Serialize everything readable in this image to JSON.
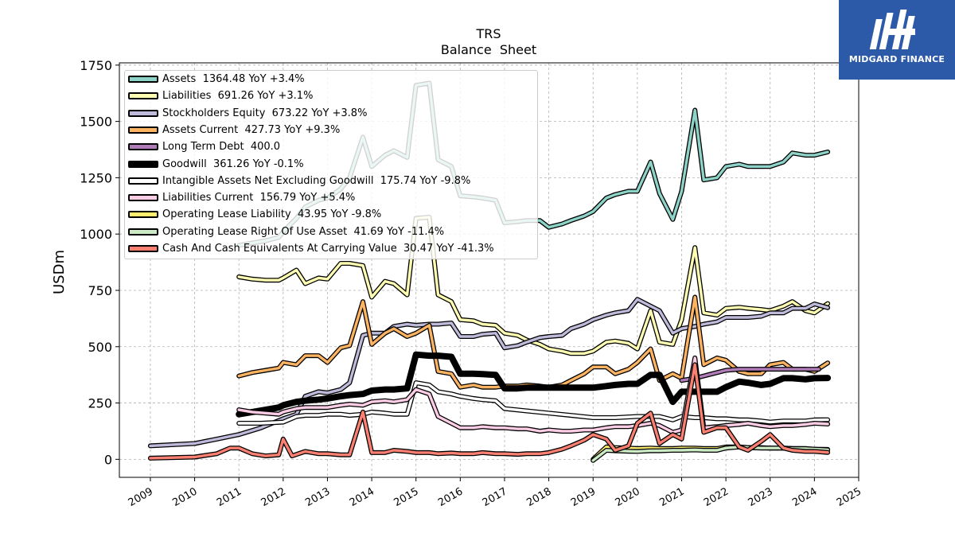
{
  "brand": {
    "name": "MIDGARD FINANCE",
    "color": "#2d5aa8"
  },
  "chart_data": {
    "type": "line",
    "title": "TRS",
    "subtitle": "Balance  Sheet",
    "ylabel": "USDm",
    "xlabel": "",
    "xlim": [
      2008.3,
      2025.0
    ],
    "ylim": [
      -80,
      1760
    ],
    "yticks": [
      0,
      250,
      500,
      750,
      1000,
      1250,
      1500,
      1750
    ],
    "yticklabels": [
      "0",
      "250",
      "500",
      "750",
      "1000",
      "1250",
      "1500",
      "1750"
    ],
    "xticks": [
      2009,
      2010,
      2011,
      2012,
      2013,
      2014,
      2015,
      2016,
      2017,
      2018,
      2019,
      2020,
      2021,
      2022,
      2023,
      2024,
      2025
    ],
    "xticklabels": [
      "2009",
      "2010",
      "2011",
      "2012",
      "2013",
      "2014",
      "2015",
      "2016",
      "2017",
      "2018",
      "2019",
      "2020",
      "2021",
      "2022",
      "2023",
      "2024",
      "2025"
    ],
    "grid": true,
    "legend_position": "top-left",
    "series": [
      {
        "name": "Assets",
        "legend": "Assets  1364.48 YoY +3.4%",
        "color": "#8dd3c7",
        "x": [
          2011.0,
          2011.3,
          2011.6,
          2011.9,
          2012.0,
          2012.3,
          2012.5,
          2012.8,
          2013.0,
          2013.3,
          2013.5,
          2013.8,
          2014.0,
          2014.3,
          2014.5,
          2014.8,
          2015.0,
          2015.3,
          2015.5,
          2015.8,
          2016.0,
          2016.3,
          2016.5,
          2016.8,
          2017.0,
          2017.3,
          2017.5,
          2017.8,
          2018.0,
          2018.3,
          2018.5,
          2018.8,
          2019.0,
          2019.3,
          2019.5,
          2019.8,
          2020.0,
          2020.3,
          2020.5,
          2020.8,
          2021.0,
          2021.3,
          2021.5,
          2021.8,
          2022.0,
          2022.3,
          2022.5,
          2022.8,
          2023.0,
          2023.3,
          2023.5,
          2023.8,
          2024.0,
          2024.3
        ],
        "y": [
          950,
          960,
          970,
          985,
          1010,
          1070,
          1120,
          1150,
          1160,
          1200,
          1250,
          1430,
          1300,
          1350,
          1370,
          1340,
          1660,
          1670,
          1330,
          1300,
          1170,
          1165,
          1160,
          1150,
          1050,
          1055,
          1060,
          1060,
          1030,
          1045,
          1060,
          1080,
          1100,
          1160,
          1175,
          1190,
          1190,
          1320,
          1180,
          1065,
          1190,
          1550,
          1240,
          1250,
          1300,
          1310,
          1300,
          1300,
          1300,
          1320,
          1360,
          1350,
          1350,
          1364.48
        ]
      },
      {
        "name": "Liabilities",
        "legend": "Liabilities  691.26 YoY +3.1%",
        "color": "#ffffb3",
        "x": [
          2011.0,
          2011.3,
          2011.6,
          2011.9,
          2012.0,
          2012.3,
          2012.5,
          2012.8,
          2013.0,
          2013.3,
          2013.5,
          2013.8,
          2014.0,
          2014.3,
          2014.5,
          2014.8,
          2015.0,
          2015.3,
          2015.5,
          2015.8,
          2016.0,
          2016.3,
          2016.5,
          2016.8,
          2017.0,
          2017.3,
          2017.5,
          2017.8,
          2018.0,
          2018.3,
          2018.5,
          2018.8,
          2019.0,
          2019.3,
          2019.5,
          2019.8,
          2020.0,
          2020.3,
          2020.5,
          2020.8,
          2021.0,
          2021.3,
          2021.5,
          2021.8,
          2022.0,
          2022.3,
          2022.5,
          2022.8,
          2023.0,
          2023.3,
          2023.5,
          2023.8,
          2024.0,
          2024.3
        ],
        "y": [
          810,
          800,
          795,
          795,
          805,
          840,
          780,
          805,
          800,
          870,
          870,
          860,
          720,
          790,
          780,
          730,
          1070,
          1075,
          730,
          700,
          620,
          615,
          600,
          595,
          560,
          550,
          530,
          510,
          490,
          480,
          470,
          470,
          480,
          520,
          525,
          515,
          490,
          660,
          520,
          510,
          620,
          940,
          650,
          640,
          670,
          675,
          670,
          665,
          660,
          680,
          700,
          660,
          650,
          691.26
        ]
      },
      {
        "name": "Stockholders Equity",
        "legend": "Stockholders Equity  673.22 YoY +3.8%",
        "color": "#bebada",
        "x": [
          2009.0,
          2010.0,
          2010.5,
          2011.0,
          2011.5,
          2012.0,
          2012.3,
          2012.5,
          2012.8,
          2013.0,
          2013.3,
          2013.5,
          2013.8,
          2014.0,
          2014.3,
          2014.5,
          2014.8,
          2015.0,
          2015.3,
          2015.5,
          2015.8,
          2016.0,
          2016.3,
          2016.5,
          2016.8,
          2017.0,
          2017.3,
          2017.5,
          2017.8,
          2018.0,
          2018.3,
          2018.5,
          2018.8,
          2019.0,
          2019.3,
          2019.5,
          2019.8,
          2020.0,
          2020.3,
          2020.5,
          2020.8,
          2021.0,
          2021.3,
          2021.5,
          2021.8,
          2022.0,
          2022.3,
          2022.5,
          2022.8,
          2023.0,
          2023.3,
          2023.5,
          2023.8,
          2024.0,
          2024.3
        ],
        "y": [
          60,
          70,
          90,
          110,
          140,
          180,
          200,
          280,
          300,
          295,
          310,
          340,
          550,
          560,
          560,
          590,
          600,
          595,
          600,
          600,
          605,
          545,
          545,
          555,
          560,
          495,
          505,
          520,
          540,
          545,
          550,
          580,
          600,
          620,
          640,
          650,
          660,
          710,
          680,
          660,
          560,
          580,
          590,
          600,
          610,
          630,
          630,
          630,
          635,
          650,
          650,
          670,
          670,
          690,
          673.22
        ]
      },
      {
        "name": "Assets Current",
        "legend": "Assets Current  427.73 YoY +9.3%",
        "color": "#fdb462",
        "x": [
          2011.0,
          2011.3,
          2011.6,
          2011.9,
          2012.0,
          2012.3,
          2012.5,
          2012.8,
          2013.0,
          2013.3,
          2013.5,
          2013.8,
          2014.0,
          2014.3,
          2014.5,
          2014.8,
          2015.0,
          2015.3,
          2015.5,
          2015.8,
          2016.0,
          2016.3,
          2016.5,
          2016.8,
          2017.0,
          2017.3,
          2017.5,
          2017.8,
          2018.0,
          2018.3,
          2018.5,
          2018.8,
          2019.0,
          2019.3,
          2019.5,
          2019.8,
          2020.0,
          2020.3,
          2020.5,
          2020.8,
          2021.0,
          2021.3,
          2021.5,
          2021.8,
          2022.0,
          2022.3,
          2022.5,
          2022.8,
          2023.0,
          2023.3,
          2023.5,
          2023.8,
          2024.0,
          2024.3
        ],
        "y": [
          370,
          385,
          395,
          405,
          430,
          420,
          460,
          460,
          430,
          495,
          505,
          700,
          510,
          560,
          580,
          545,
          560,
          595,
          390,
          380,
          320,
          330,
          320,
          320,
          325,
          325,
          330,
          325,
          320,
          330,
          350,
          380,
          410,
          410,
          380,
          400,
          430,
          490,
          350,
          380,
          360,
          720,
          420,
          450,
          440,
          390,
          380,
          380,
          420,
          430,
          400,
          400,
          390,
          427.73
        ]
      },
      {
        "name": "Long Term Debt",
        "legend": "Long Term Debt  400.0",
        "color": "#b07cb8",
        "x": [
          2021.0,
          2021.3,
          2021.5,
          2021.8,
          2022.0,
          2022.3,
          2022.5,
          2022.8,
          2023.0,
          2023.3,
          2023.5,
          2023.8,
          2024.0,
          2024.1
        ],
        "y": [
          350,
          360,
          370,
          385,
          395,
          400,
          400,
          400,
          400,
          400,
          400,
          400,
          400,
          400.0
        ]
      },
      {
        "name": "Goodwill",
        "legend": "Goodwill  361.26 YoY -0.1%",
        "color": "#000000",
        "thick": true,
        "x": [
          2011.0,
          2011.3,
          2011.6,
          2011.9,
          2012.0,
          2012.3,
          2012.5,
          2012.8,
          2013.0,
          2013.3,
          2013.5,
          2013.8,
          2014.0,
          2014.3,
          2014.5,
          2014.8,
          2015.0,
          2015.3,
          2015.5,
          2015.8,
          2016.0,
          2016.3,
          2016.5,
          2016.8,
          2017.0,
          2017.3,
          2017.5,
          2017.8,
          2018.0,
          2018.3,
          2018.5,
          2018.8,
          2019.0,
          2019.3,
          2019.5,
          2019.8,
          2020.0,
          2020.3,
          2020.5,
          2020.8,
          2021.0,
          2021.3,
          2021.5,
          2021.8,
          2022.0,
          2022.3,
          2022.5,
          2022.8,
          2023.0,
          2023.3,
          2023.5,
          2023.8,
          2024.0,
          2024.3
        ],
        "y": [
          200,
          210,
          220,
          230,
          240,
          255,
          260,
          265,
          270,
          280,
          285,
          290,
          305,
          310,
          310,
          315,
          465,
          460,
          460,
          455,
          380,
          380,
          378,
          375,
          315,
          315,
          318,
          318,
          318,
          318,
          318,
          318,
          318,
          325,
          330,
          335,
          335,
          375,
          375,
          255,
          300,
          300,
          300,
          300,
          320,
          345,
          340,
          330,
          335,
          360,
          360,
          355,
          360,
          361.26
        ]
      },
      {
        "name": "Intangible Assets Net Excluding Goodwill",
        "legend": "Intangible Assets Net Excluding Goodwill  175.74 YoY -9.8%",
        "color": "#ffffff",
        "x": [
          2011.0,
          2011.5,
          2012.0,
          2012.3,
          2012.5,
          2012.8,
          2013.0,
          2013.3,
          2013.5,
          2013.8,
          2014.0,
          2014.3,
          2014.5,
          2014.8,
          2015.0,
          2015.3,
          2015.5,
          2015.8,
          2016.0,
          2016.3,
          2016.5,
          2016.8,
          2017.0,
          2017.5,
          2018.0,
          2018.5,
          2019.0,
          2019.5,
          2020.0,
          2020.5,
          2020.8,
          2021.0,
          2021.3,
          2021.5,
          2021.8,
          2022.0,
          2022.3,
          2022.5,
          2022.8,
          2023.0,
          2023.3,
          2023.5,
          2023.8,
          2024.0,
          2024.3
        ],
        "y": [
          160,
          160,
          165,
          190,
          195,
          195,
          200,
          200,
          195,
          200,
          210,
          205,
          200,
          200,
          340,
          330,
          300,
          290,
          280,
          270,
          265,
          260,
          225,
          215,
          205,
          195,
          185,
          185,
          190,
          190,
          175,
          190,
          185,
          185,
          180,
          180,
          175,
          175,
          170,
          165,
          170,
          170,
          170,
          175,
          175.74
        ]
      },
      {
        "name": "Liabilities Current",
        "legend": "Liabilities Current  156.79 YoY +5.4%",
        "color": "#fccde5",
        "x": [
          2011.0,
          2011.3,
          2011.6,
          2011.9,
          2012.0,
          2012.3,
          2012.5,
          2012.8,
          2013.0,
          2013.3,
          2013.5,
          2013.8,
          2014.0,
          2014.3,
          2014.5,
          2014.8,
          2015.0,
          2015.3,
          2015.5,
          2015.8,
          2016.0,
          2016.3,
          2016.5,
          2016.8,
          2017.0,
          2017.3,
          2017.5,
          2017.8,
          2018.0,
          2018.3,
          2018.5,
          2018.8,
          2019.0,
          2019.3,
          2019.5,
          2019.8,
          2020.0,
          2020.3,
          2020.5,
          2020.8,
          2021.0,
          2021.3,
          2021.5,
          2021.8,
          2022.0,
          2022.3,
          2022.5,
          2022.8,
          2023.0,
          2023.3,
          2023.5,
          2023.8,
          2024.0,
          2024.3
        ],
        "y": [
          220,
          210,
          205,
          200,
          210,
          225,
          230,
          230,
          230,
          240,
          245,
          240,
          255,
          260,
          255,
          265,
          310,
          290,
          190,
          160,
          140,
          140,
          145,
          140,
          140,
          135,
          135,
          125,
          130,
          125,
          125,
          130,
          130,
          140,
          145,
          145,
          150,
          160,
          150,
          120,
          130,
          450,
          140,
          145,
          150,
          155,
          160,
          150,
          145,
          150,
          150,
          155,
          160,
          156.79
        ]
      },
      {
        "name": "Operating Lease Liability",
        "legend": "Operating Lease Liability  43.95 YoY -9.8%",
        "color": "#ffed6f",
        "x": [
          2019.0,
          2019.3,
          2019.5,
          2019.8,
          2020.0,
          2020.3,
          2020.5,
          2020.8,
          2021.0,
          2021.3,
          2021.5,
          2021.8,
          2022.0,
          2022.3,
          2022.5,
          2022.8,
          2023.0,
          2023.3,
          2023.5,
          2023.8,
          2024.0,
          2024.3
        ],
        "y": [
          0,
          55,
          52,
          50,
          48,
          50,
          48,
          48,
          50,
          50,
          48,
          48,
          55,
          55,
          52,
          52,
          50,
          50,
          48,
          48,
          45,
          43.95
        ]
      },
      {
        "name": "Operating Lease Right Of Use Asset",
        "legend": "Operating Lease Right Of Use Asset  41.69 YoY -11.4%",
        "color": "#ccebc5",
        "x": [
          2019.0,
          2019.3,
          2019.5,
          2019.8,
          2020.0,
          2020.3,
          2020.5,
          2020.8,
          2021.0,
          2021.3,
          2021.5,
          2021.8,
          2022.0,
          2022.3,
          2022.5,
          2022.8,
          2023.0,
          2023.3,
          2023.5,
          2023.8,
          2024.0,
          2024.3
        ],
        "y": [
          -5,
          40,
          38,
          36,
          35,
          38,
          38,
          40,
          40,
          42,
          40,
          40,
          50,
          55,
          52,
          50,
          50,
          50,
          48,
          47,
          45,
          41.69
        ]
      },
      {
        "name": "Cash And Cash Equivalents At Carrying Value",
        "legend": "Cash And Cash Equivalents At Carrying Value  30.47 YoY -41.3%",
        "color": "#fb8072",
        "x": [
          2009.0,
          2010.0,
          2010.5,
          2010.8,
          2011.0,
          2011.3,
          2011.6,
          2011.9,
          2012.0,
          2012.2,
          2012.5,
          2012.8,
          2013.0,
          2013.3,
          2013.5,
          2013.8,
          2014.0,
          2014.3,
          2014.5,
          2014.8,
          2015.0,
          2015.3,
          2015.5,
          2015.8,
          2016.0,
          2016.3,
          2016.5,
          2016.8,
          2017.0,
          2017.3,
          2017.5,
          2017.8,
          2018.0,
          2018.3,
          2018.5,
          2018.8,
          2019.0,
          2019.3,
          2019.5,
          2019.8,
          2020.0,
          2020.3,
          2020.5,
          2020.8,
          2021.0,
          2021.3,
          2021.5,
          2021.8,
          2022.0,
          2022.3,
          2022.5,
          2022.8,
          2023.0,
          2023.3,
          2023.5,
          2023.8,
          2024.0,
          2024.3
        ],
        "y": [
          5,
          10,
          25,
          50,
          50,
          25,
          15,
          20,
          90,
          15,
          35,
          25,
          25,
          20,
          20,
          210,
          30,
          30,
          40,
          35,
          30,
          30,
          25,
          28,
          25,
          25,
          30,
          25,
          25,
          22,
          25,
          25,
          30,
          45,
          60,
          85,
          110,
          90,
          40,
          60,
          160,
          205,
          70,
          110,
          90,
          420,
          120,
          140,
          140,
          55,
          40,
          80,
          110,
          50,
          40,
          35,
          35,
          30.47
        ]
      }
    ]
  }
}
